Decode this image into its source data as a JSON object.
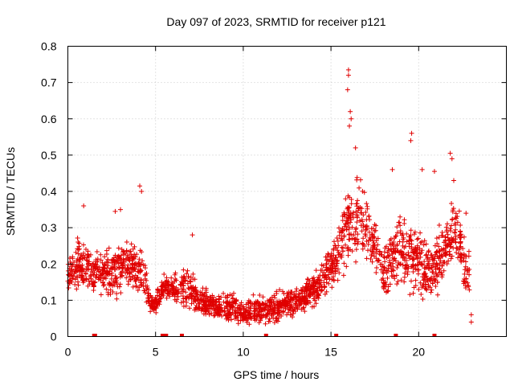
{
  "chart_data": {
    "type": "scatter",
    "title": "Day 097 of 2023, SRMTID for receiver p121",
    "xlabel": "GPS time / hours",
    "ylabel": "SRMTID / TECUs",
    "xlim": [
      0,
      25
    ],
    "ylim": [
      0,
      0.8
    ],
    "x_ticks": [
      0,
      5,
      10,
      15,
      20
    ],
    "x_tick_labels": [
      "0",
      "5",
      "10",
      "15",
      "20"
    ],
    "y_ticks": [
      0,
      0.1,
      0.2,
      0.3,
      0.4,
      0.5,
      0.6,
      0.7,
      0.8
    ],
    "y_tick_labels": [
      "0",
      "0.1",
      "0.2",
      "0.3",
      "0.4",
      "0.5",
      "0.6",
      "0.7",
      "0.8"
    ],
    "grid": true,
    "marker": "plus",
    "color": "#e00000",
    "envelope_hours": [
      0,
      0.5,
      1,
      1.5,
      2,
      2.5,
      3,
      3.5,
      4,
      4.3,
      4.6,
      5,
      5.5,
      6,
      6.5,
      7,
      7.5,
      8,
      8.5,
      9,
      9.5,
      10,
      10.5,
      11,
      11.5,
      12,
      12.5,
      13,
      13.5,
      14,
      14.5,
      15,
      15.5,
      16,
      16.5,
      17,
      17.5,
      18,
      18.5,
      19,
      19.5,
      20,
      20.5,
      21,
      21.5,
      22,
      22.5,
      22.9
    ],
    "envelope_mean": [
      0.17,
      0.2,
      0.2,
      0.18,
      0.17,
      0.18,
      0.19,
      0.2,
      0.17,
      0.2,
      0.1,
      0.09,
      0.14,
      0.13,
      0.14,
      0.13,
      0.1,
      0.09,
      0.08,
      0.08,
      0.08,
      0.06,
      0.07,
      0.07,
      0.07,
      0.08,
      0.09,
      0.1,
      0.11,
      0.13,
      0.15,
      0.19,
      0.24,
      0.3,
      0.33,
      0.29,
      0.25,
      0.18,
      0.22,
      0.26,
      0.23,
      0.2,
      0.17,
      0.2,
      0.24,
      0.3,
      0.22,
      0.16
    ],
    "envelope_spread": [
      0.06,
      0.08,
      0.09,
      0.07,
      0.07,
      0.08,
      0.09,
      0.08,
      0.08,
      0.12,
      0.04,
      0.03,
      0.05,
      0.05,
      0.06,
      0.07,
      0.05,
      0.04,
      0.04,
      0.05,
      0.05,
      0.04,
      0.05,
      0.05,
      0.05,
      0.05,
      0.05,
      0.05,
      0.05,
      0.05,
      0.06,
      0.07,
      0.12,
      0.16,
      0.15,
      0.11,
      0.1,
      0.1,
      0.12,
      0.13,
      0.12,
      0.11,
      0.1,
      0.1,
      0.11,
      0.12,
      0.1,
      0.08
    ],
    "peak_points": [
      {
        "x": 16.0,
        "y": 0.735
      },
      {
        "x": 16.0,
        "y": 0.72
      },
      {
        "x": 15.95,
        "y": 0.68
      },
      {
        "x": 16.1,
        "y": 0.62
      },
      {
        "x": 16.15,
        "y": 0.6
      },
      {
        "x": 16.05,
        "y": 0.58
      },
      {
        "x": 19.6,
        "y": 0.56
      },
      {
        "x": 19.55,
        "y": 0.54
      },
      {
        "x": 16.4,
        "y": 0.52
      },
      {
        "x": 21.8,
        "y": 0.505
      },
      {
        "x": 21.9,
        "y": 0.49
      },
      {
        "x": 18.5,
        "y": 0.46
      },
      {
        "x": 20.2,
        "y": 0.46
      },
      {
        "x": 20.9,
        "y": 0.455
      },
      {
        "x": 4.1,
        "y": 0.415
      },
      {
        "x": 4.2,
        "y": 0.4
      },
      {
        "x": 22.0,
        "y": 0.43
      },
      {
        "x": 0.9,
        "y": 0.36
      },
      {
        "x": 7.1,
        "y": 0.28
      },
      {
        "x": 3.0,
        "y": 0.35
      },
      {
        "x": 2.7,
        "y": 0.345
      },
      {
        "x": 22.7,
        "y": 0.34
      },
      {
        "x": 23.0,
        "y": 0.04
      },
      {
        "x": 23.0,
        "y": 0.06
      }
    ],
    "zero_points": [
      1.5,
      1.55,
      5.4,
      5.5,
      5.6,
      6.5,
      11.3,
      15.3,
      18.7,
      20.9
    ],
    "point_count": 2200
  }
}
